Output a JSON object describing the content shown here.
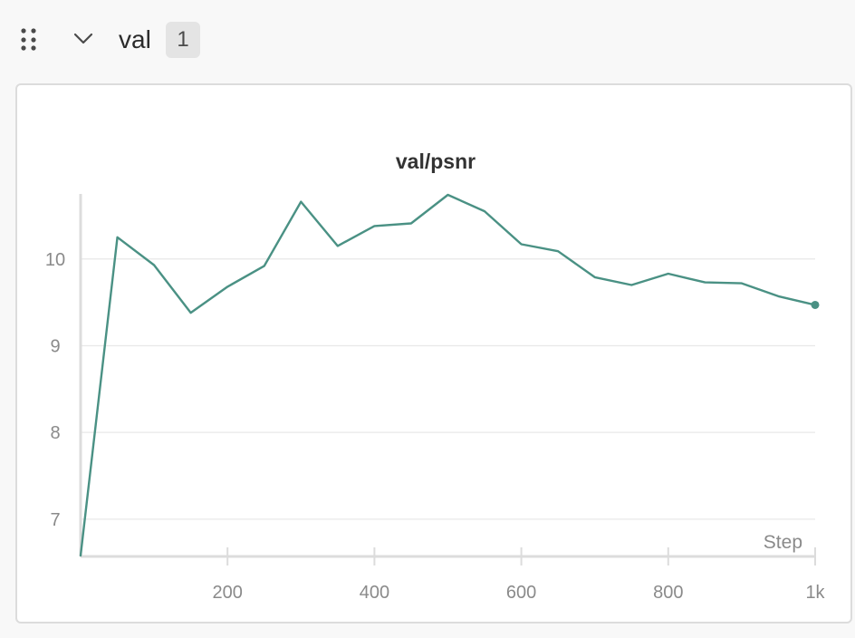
{
  "section": {
    "title": "val",
    "count": "1"
  },
  "icons": {
    "drag": "drag-handle-icon",
    "collapse": "chevron-down-icon"
  },
  "colors": {
    "line": "#4a9184",
    "grid": "#e8e8e8",
    "axis": "#dcdcdc",
    "tick_text": "#8a8a8a",
    "title_text": "#333333"
  },
  "chart_data": {
    "type": "line",
    "title": "val/psnr",
    "xlabel": "Step",
    "ylabel": "",
    "xlim": [
      0,
      1000
    ],
    "ylim": [
      6.57,
      10.75
    ],
    "x_ticks": [
      200,
      400,
      600,
      800,
      1000
    ],
    "x_tick_labels": [
      "200",
      "400",
      "600",
      "800",
      "1k"
    ],
    "y_ticks": [
      7,
      8,
      9,
      10
    ],
    "y_tick_labels": [
      "7",
      "8",
      "9",
      "10"
    ],
    "grid": true,
    "series": [
      {
        "x": [
          0,
          50,
          100,
          150,
          200,
          250,
          300,
          350,
          400,
          450,
          500,
          550,
          600,
          650,
          700,
          750,
          800,
          850,
          900,
          950,
          1000
        ],
        "values": [
          6.58,
          10.25,
          9.93,
          9.38,
          9.68,
          9.92,
          10.66,
          10.15,
          10.38,
          10.41,
          10.74,
          10.55,
          10.17,
          10.09,
          9.79,
          9.7,
          9.83,
          9.73,
          9.72,
          9.57,
          9.47
        ]
      }
    ]
  }
}
